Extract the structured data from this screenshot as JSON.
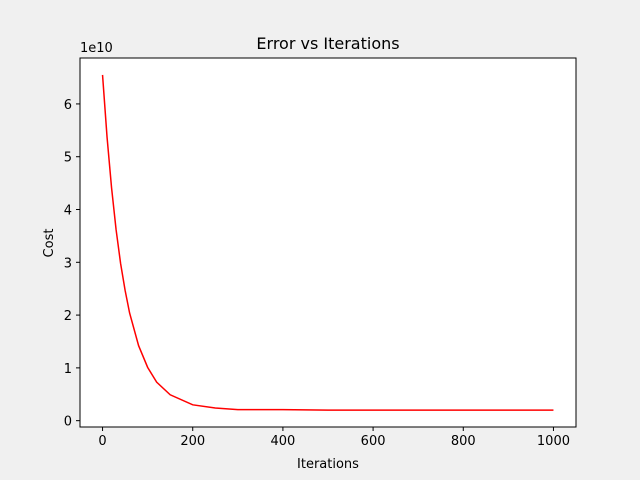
{
  "chart_data": {
    "type": "line",
    "title": "Error vs Iterations",
    "xlabel": "Iterations",
    "ylabel": "Cost",
    "y_offset_label": "1e10",
    "x": [
      0,
      10,
      20,
      30,
      40,
      50,
      60,
      80,
      100,
      120,
      150,
      200,
      250,
      300,
      400,
      500,
      600,
      800,
      1000
    ],
    "series": [
      {
        "color": "#ff0000",
        "values": [
          6.55,
          5.37,
          4.41,
          3.62,
          2.98,
          2.47,
          2.04,
          1.42,
          1.01,
          0.73,
          0.49,
          0.3,
          0.24,
          0.21,
          0.21,
          0.2,
          0.2,
          0.2,
          0.2
        ]
      }
    ],
    "xlim": [
      -50,
      1050
    ],
    "ylim": [
      -0.12,
      6.87
    ],
    "xticks": [
      0,
      200,
      400,
      600,
      800,
      1000
    ],
    "yticks": [
      0,
      1,
      2,
      3,
      4,
      5,
      6
    ]
  }
}
